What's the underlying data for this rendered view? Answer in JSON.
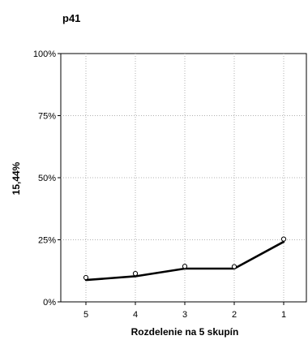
{
  "chart_data": {
    "type": "line",
    "title": "p41",
    "xlabel": "Rozdelenie na 5 skupín",
    "ylabel": "15,44%",
    "categories": [
      "5",
      "4",
      "3",
      "2",
      "1"
    ],
    "ylim": [
      0,
      100
    ],
    "y_ticks": [
      {
        "value": 0,
        "label": "0%"
      },
      {
        "value": 25,
        "label": "25%"
      },
      {
        "value": 50,
        "label": "50%"
      },
      {
        "value": 75,
        "label": "75%"
      },
      {
        "value": 100,
        "label": "100%"
      }
    ],
    "grid": true,
    "series": [
      {
        "kind": "line",
        "values": [
          8.8,
          10.3,
          13.4,
          13.4,
          24.2
        ],
        "color": "#000000"
      },
      {
        "kind": "points",
        "values": [
          9.8,
          11.4,
          14.3,
          14.2,
          25.3
        ],
        "color": "#000000"
      }
    ]
  }
}
